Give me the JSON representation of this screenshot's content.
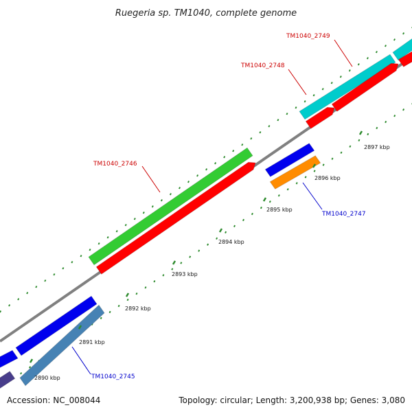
{
  "title": "Ruegeria sp. TM1040, complete genome",
  "footer": {
    "accession": "Accession: NC_008044",
    "topology": "Topology: circular; Length: 3,200,938 bp; Genes: 3,080"
  },
  "colors": {
    "background": "#ffffff",
    "backbone": "#808080",
    "tick": "#2e8b2e",
    "label_red": "#cc0000",
    "label_blue": "#0000cc"
  },
  "ticks": [
    {
      "label": "2890 kbp"
    },
    {
      "label": "2891 kbp"
    },
    {
      "label": "2892 kbp"
    },
    {
      "label": "2893 kbp"
    },
    {
      "label": "2894 kbp"
    },
    {
      "label": "2895 kbp"
    },
    {
      "label": "2896 kbp"
    },
    {
      "label": "2897 kbp"
    }
  ],
  "genes": [
    {
      "name": "TM1040_2745",
      "color": "#4682b4"
    },
    {
      "name": "TM1040_2746",
      "color": "#33cc33"
    },
    {
      "name": "TM1040_2747",
      "color": "#ff8c00"
    },
    {
      "name": "TM1040_2748",
      "color": "#ff0000"
    },
    {
      "name": "TM1040_2749",
      "color": "#00cccc"
    }
  ],
  "unlabeled_gene_colors": [
    "#0000ee",
    "#ff0000",
    "#483d8b"
  ]
}
